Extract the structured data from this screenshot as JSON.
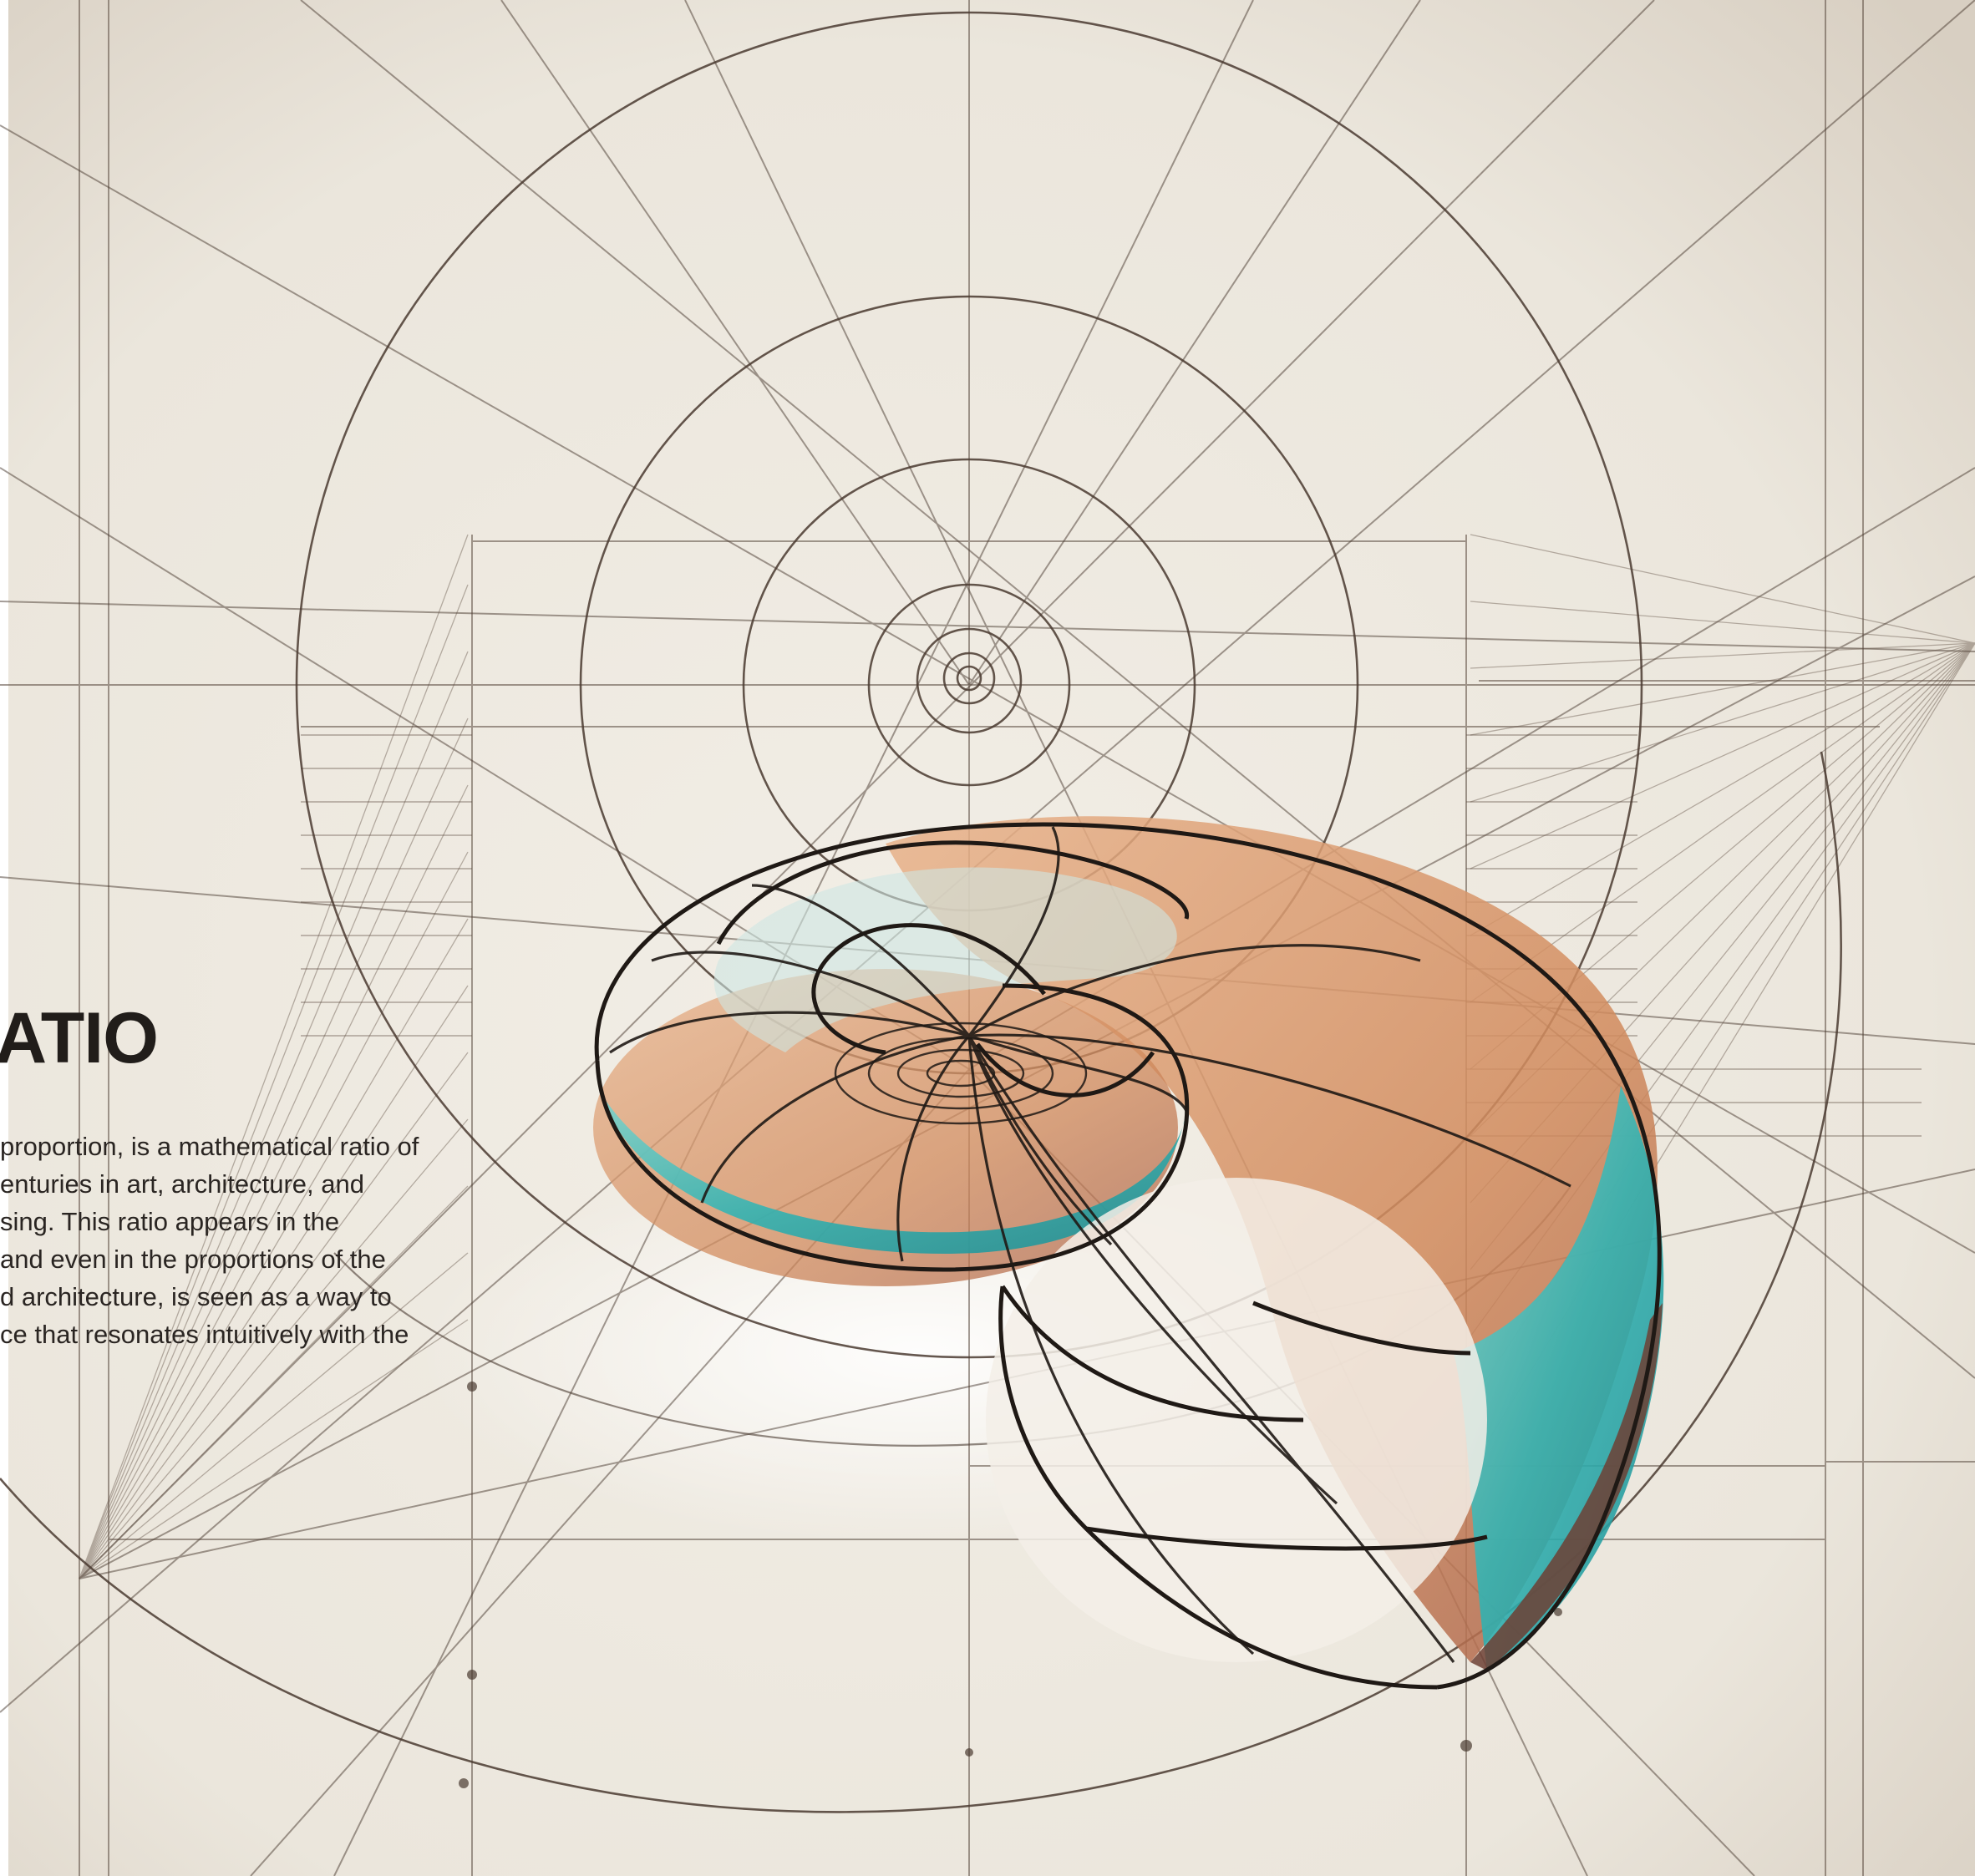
{
  "artwork": {
    "subject": "golden-ratio-nautilus-shell-drawing",
    "colors": {
      "paper": "#ebe6dc",
      "ink": "#3d2f26",
      "shell_orange": "#d8956a",
      "shell_teal": "#3cb5b3",
      "shell_dark": "#7a4a3a",
      "paper_shadow": "#d8cfc2"
    }
  },
  "overlay": {
    "heading": "ATIO",
    "lines": [
      "proportion, is a mathematical ratio of",
      "enturies in art, architecture, and",
      "sing. This ratio appears in the",
      " and even in the proportions of the",
      "d architecture, is seen as a way to",
      "ce that resonates intuitively with the"
    ]
  }
}
